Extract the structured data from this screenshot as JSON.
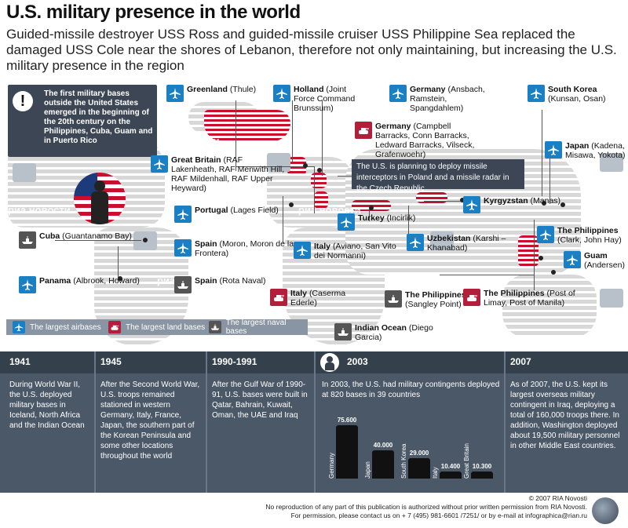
{
  "title": "U.S. military presence in the world",
  "subtitle": "Guided-missile destroyer USS Ross and guided-missile cruiser USS Philippine Sea replaced the damaged USS Cole near the shores of Lebanon, therefore not only maintaining, but increasing the U.S. military presence in the region",
  "first_bases_note": "The first military bases outside the United States emerged in the beginning of the 20th century on the Philippines, Cuba, Guam and in Puerto Rico",
  "plan_note": "The U.S. is planning to deploy missile interceptors in Poland and a missile radar in the Czech Republic",
  "watermark": "риа новости",
  "bases": [
    {
      "name": "Greenland",
      "detail": "(Thule)",
      "type": "air"
    },
    {
      "name": "Holland",
      "detail": "(Joint Force Command Brunssum)",
      "type": "air"
    },
    {
      "name": "Germany",
      "detail": "(Ansbach, Ramstein, Spangdahlem)",
      "type": "air"
    },
    {
      "name": "South Korea",
      "detail": "(Kunsan, Osan)",
      "type": "air"
    },
    {
      "name": "Germany",
      "detail": "(Campbell Barracks, Conn Barracks, Ledward Barracks, Vilseck, Grafenwoehr)",
      "type": "land"
    },
    {
      "name": "Japan",
      "detail": "(Kadena, Misawa, Yokota)",
      "type": "air"
    },
    {
      "name": "Great Britain",
      "detail": "(RAF Lakenheath, RAF Menwith Hill, RAF Mildenhall, RAF Upper Heyward)",
      "type": "air"
    },
    {
      "name": "Portugal",
      "detail": "(Lages Field)",
      "type": "air"
    },
    {
      "name": "Kyrgyzstan",
      "detail": "(Manas)",
      "type": "air"
    },
    {
      "name": "Turkey",
      "detail": "(Incirlik)",
      "type": "air"
    },
    {
      "name": "The Philippines",
      "detail": "(Clark, John Hay)",
      "type": "air"
    },
    {
      "name": "Cuba",
      "detail": "(Guantanamo Bay)",
      "type": "naval"
    },
    {
      "name": "Spain",
      "detail": "(Moron, Moron de la Frontera)",
      "type": "air"
    },
    {
      "name": "Italy",
      "detail": "(Aviano, San Vito dei Normanni)",
      "type": "air"
    },
    {
      "name": "Uzbekistan",
      "detail": "(Karshi – Khanabad)",
      "type": "air"
    },
    {
      "name": "Guam",
      "detail": "(Andersen)",
      "type": "air"
    },
    {
      "name": "Panama",
      "detail": "(Albrook, Howard)",
      "type": "air"
    },
    {
      "name": "Spain",
      "detail": "(Rota Naval)",
      "type": "naval"
    },
    {
      "name": "Italy",
      "detail": "(Caserma Ederle)",
      "type": "land"
    },
    {
      "name": "The Philippines",
      "detail": "(Sangley Point)",
      "type": "naval"
    },
    {
      "name": "The Philippines",
      "detail": "(Post of Limay, Post of Manila)",
      "type": "land"
    },
    {
      "name": "Indian Ocean",
      "detail": "(Diego Garcia)",
      "type": "naval"
    }
  ],
  "legend": {
    "air": "The largest airbases",
    "land": "The largest land bases",
    "naval": "The largest naval bases"
  },
  "timeline": [
    {
      "year": "1941",
      "text": "During World War II, the U.S. deployed military bases in Iceland, North Africa and the Indian Ocean"
    },
    {
      "year": "1945",
      "text": "After the Second World War, U.S. troops remained stationed in western Germany, Italy, France, Japan, the southern part of the Korean Peninsula and some other locations throughout the world"
    },
    {
      "year": "1990-1991",
      "text": "After the Gulf War of 1990-91, U.S. bases were built in Qatar, Bahrain, Kuwait, Oman, the UAE and Iraq"
    },
    {
      "year": "2003",
      "text": "In 2003, the U.S. had military contingents deployed at 820 bases in 39 countries"
    },
    {
      "year": "2007",
      "text": "As of 2007, the U.S. kept its largest overseas military contingent in Iraq, deploying a total of 160,000 troops there. In addition, Washington deployed about 19,500 military personnel in other Middle East countries."
    }
  ],
  "chart_data": {
    "type": "bar",
    "categories": [
      "Germany",
      "Japan",
      "South Korea",
      "Italy",
      "Great Britain"
    ],
    "values": [
      75600,
      40000,
      29000,
      10400,
      10300
    ],
    "value_labels": [
      "75.600",
      "40.000",
      "29.000",
      "10.400",
      "10.300"
    ],
    "ylim": [
      0,
      80000
    ]
  },
  "footer": {
    "copyright": "© 2007 RIA Novosti",
    "line1": "No reproduction of any part of this publication is authorized without prior written permission from RIA Novosti.",
    "line2": "For permission, please contact us on + 7 (495) 981-6601 /7251/ or by e-mail at infographica@rian.ru"
  },
  "colors": {
    "air": "#1a7fc3",
    "land": "#b21f3a",
    "naval": "#555555",
    "panel": "#3c4654"
  }
}
